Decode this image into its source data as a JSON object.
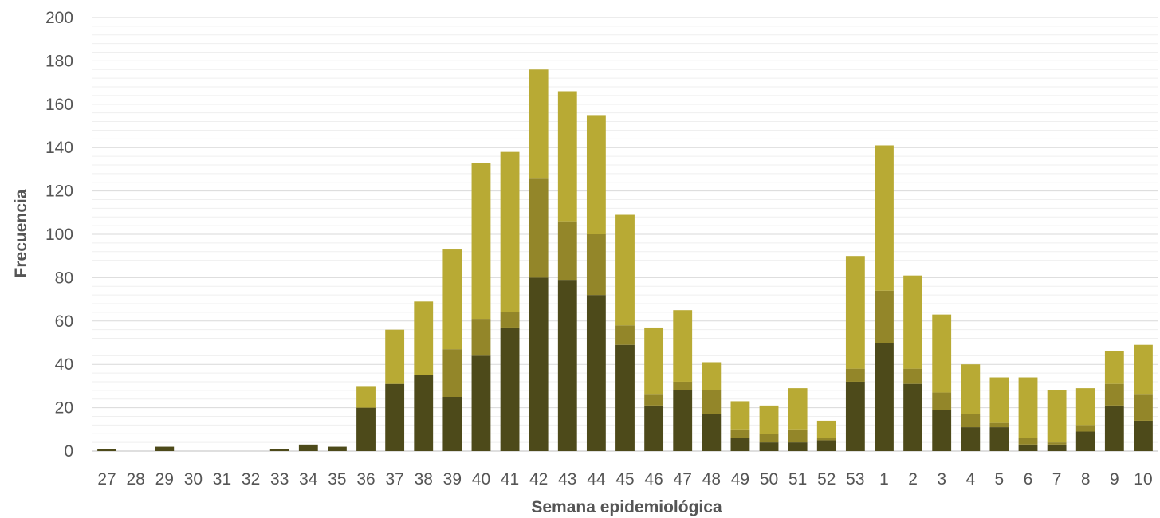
{
  "chart_data": {
    "type": "bar",
    "stacked": true,
    "xlabel": "Semana epidemiológica",
    "ylabel": "Frecuencia",
    "ylim": [
      0,
      200
    ],
    "yticks": [
      0,
      20,
      40,
      60,
      80,
      100,
      120,
      140,
      160,
      180,
      200
    ],
    "minor_grid_step": 4,
    "grid": true,
    "legend": "none",
    "categories": [
      "27",
      "28",
      "29",
      "30",
      "31",
      "32",
      "33",
      "34",
      "35",
      "36",
      "37",
      "38",
      "39",
      "40",
      "41",
      "42",
      "43",
      "44",
      "45",
      "46",
      "47",
      "48",
      "49",
      "50",
      "51",
      "52",
      "53",
      "1",
      "2",
      "3",
      "4",
      "5",
      "6",
      "7",
      "8",
      "9",
      "10"
    ],
    "series": [
      {
        "color": "#4d4a1a",
        "values": [
          1,
          0,
          2,
          0,
          0,
          0,
          1,
          3,
          2,
          20,
          31,
          35,
          25,
          44,
          57,
          80,
          79,
          72,
          49,
          21,
          28,
          17,
          6,
          4,
          4,
          5,
          32,
          50,
          31,
          19,
          11,
          11,
          3,
          3,
          9,
          21,
          14
        ]
      },
      {
        "color": "#938629",
        "values": [
          0,
          0,
          0,
          0,
          0,
          0,
          0,
          0,
          0,
          0,
          0,
          0,
          22,
          17,
          7,
          46,
          27,
          28,
          9,
          5,
          4,
          11,
          4,
          4,
          6,
          1,
          6,
          24,
          7,
          8,
          6,
          2,
          3,
          1,
          3,
          10,
          12
        ]
      },
      {
        "color": "#b8aa34",
        "values": [
          0,
          0,
          0,
          0,
          0,
          0,
          0,
          0,
          0,
          10,
          25,
          34,
          46,
          72,
          74,
          50,
          60,
          55,
          51,
          31,
          33,
          13,
          13,
          13,
          19,
          8,
          52,
          67,
          43,
          36,
          23,
          21,
          28,
          24,
          17,
          15,
          23
        ]
      }
    ]
  }
}
